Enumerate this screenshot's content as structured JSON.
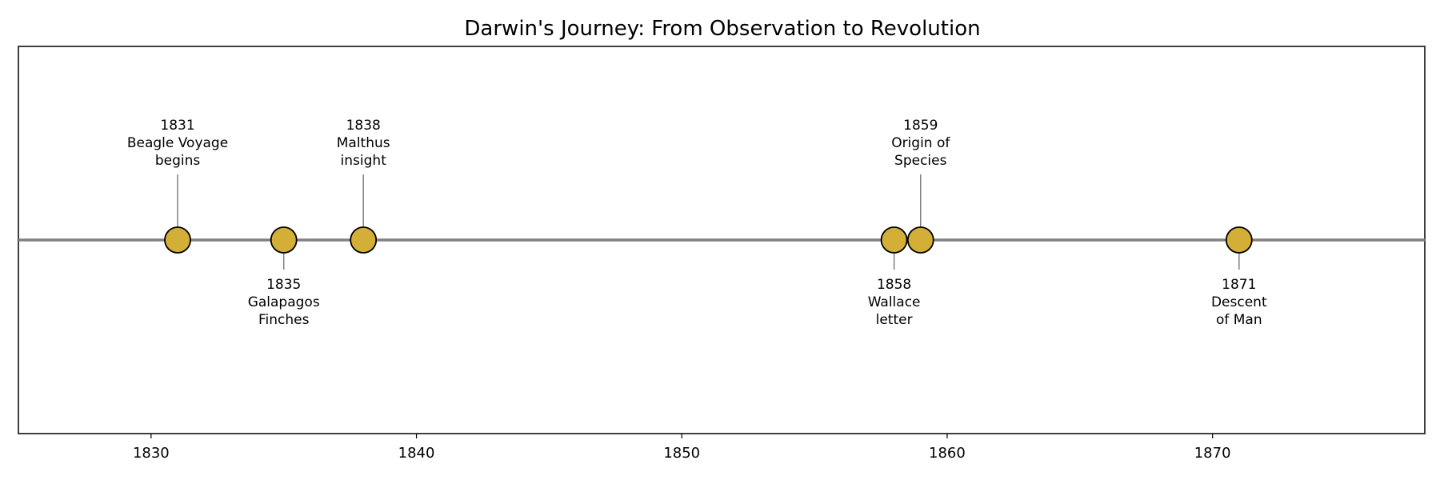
{
  "chart_data": {
    "type": "scatter",
    "title": "Darwin's Journey: From Observation to Revolution",
    "xlabel": "",
    "ylabel": "",
    "xlim": [
      1825,
      1878
    ],
    "xticks": [
      1830,
      1840,
      1850,
      1860,
      1870
    ],
    "grid": false,
    "events": [
      {
        "year": 1831,
        "label": [
          "1831",
          "Beagle Voyage",
          "begins"
        ],
        "side": "above"
      },
      {
        "year": 1835,
        "label": [
          "1835",
          "Galapagos",
          "Finches"
        ],
        "side": "below"
      },
      {
        "year": 1838,
        "label": [
          "1838",
          "Malthus",
          "insight"
        ],
        "side": "above"
      },
      {
        "year": 1858,
        "label": [
          "1858",
          "Wallace",
          "letter"
        ],
        "side": "below"
      },
      {
        "year": 1859,
        "label": [
          "1859",
          "Origin of",
          "Species"
        ],
        "side": "above"
      },
      {
        "year": 1871,
        "label": [
          "1871",
          "Descent",
          "of Man"
        ],
        "side": "below"
      }
    ],
    "colors": {
      "marker_fill": "#d4af37",
      "marker_edge": "#000000",
      "timeline": "#808080",
      "stem": "#808080"
    }
  }
}
